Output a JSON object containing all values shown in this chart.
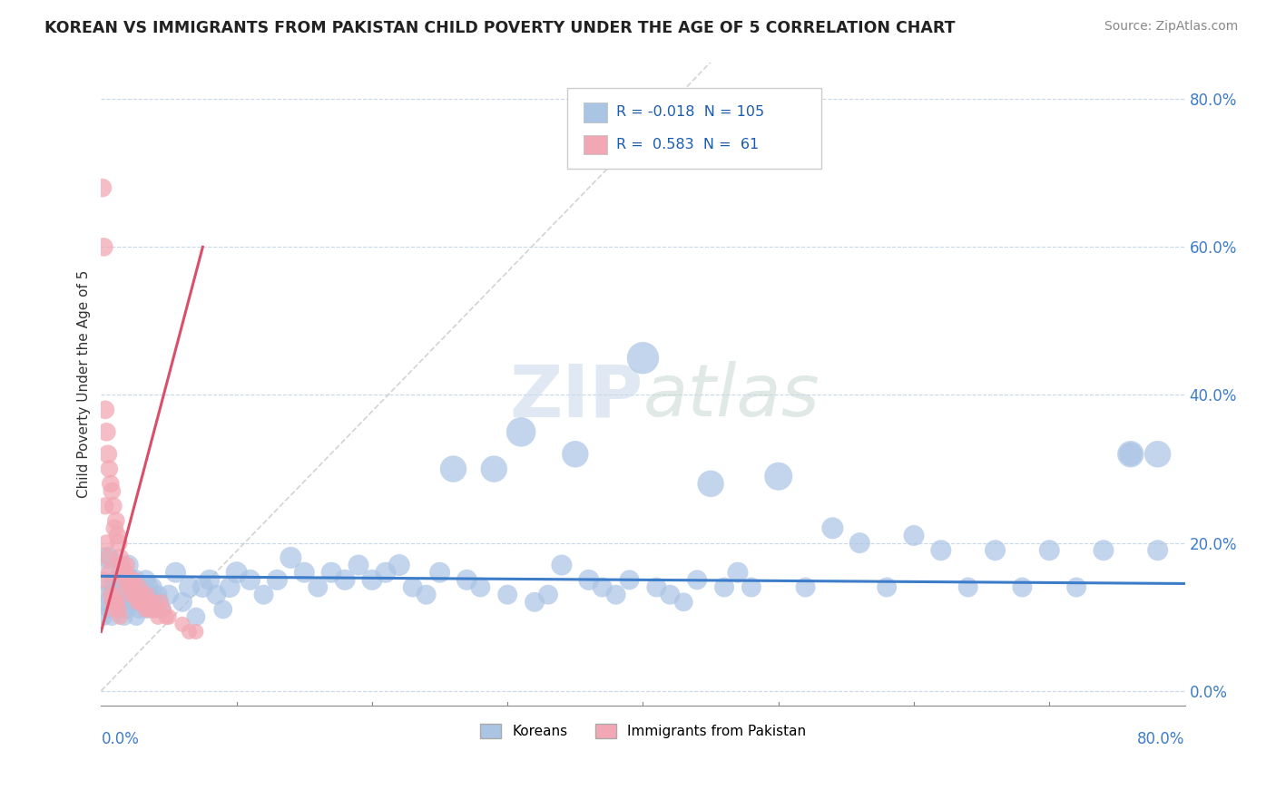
{
  "title": "KOREAN VS IMMIGRANTS FROM PAKISTAN CHILD POVERTY UNDER THE AGE OF 5 CORRELATION CHART",
  "source": "Source: ZipAtlas.com",
  "ylabel": "Child Poverty Under the Age of 5",
  "korean_R": "-0.018",
  "korean_N": "105",
  "pakistan_R": "0.583",
  "pakistan_N": "61",
  "watermark_zip": "ZIP",
  "watermark_atlas": "atlas",
  "legend_korean": "Koreans",
  "legend_pakistan": "Immigrants from Pakistan",
  "korean_color": "#aac4e4",
  "pakistan_color": "#f2a8b4",
  "korean_line_color": "#3d7cc9",
  "pakistan_line_color": "#d94f6a",
  "ref_line_color": "#c8c8c8",
  "grid_color": "#c8d8e8",
  "tick_color": "#3d7cc9",
  "title_color": "#222222",
  "source_color": "#888888",
  "ylabel_color": "#333333",
  "korean_scatter_x": [
    0.005,
    0.01,
    0.015,
    0.02,
    0.025,
    0.03,
    0.035,
    0.04,
    0.045,
    0.05,
    0.055,
    0.06,
    0.065,
    0.07,
    0.075,
    0.08,
    0.085,
    0.09,
    0.095,
    0.1,
    0.11,
    0.12,
    0.13,
    0.14,
    0.15,
    0.16,
    0.17,
    0.18,
    0.19,
    0.2,
    0.21,
    0.22,
    0.23,
    0.24,
    0.25,
    0.27,
    0.28,
    0.3,
    0.32,
    0.33,
    0.34,
    0.36,
    0.37,
    0.38,
    0.39,
    0.41,
    0.42,
    0.43,
    0.44,
    0.46,
    0.47,
    0.48,
    0.52,
    0.54,
    0.56,
    0.58,
    0.6,
    0.62,
    0.64,
    0.66,
    0.68,
    0.7,
    0.72,
    0.74,
    0.76,
    0.78,
    0.002,
    0.003,
    0.004,
    0.006,
    0.007,
    0.008,
    0.009,
    0.012,
    0.013,
    0.014,
    0.016,
    0.017,
    0.018,
    0.019,
    0.022,
    0.023,
    0.024,
    0.026,
    0.027,
    0.028,
    0.029,
    0.032,
    0.033,
    0.034,
    0.036,
    0.037,
    0.038,
    0.039,
    0.042,
    0.043,
    0.26,
    0.29,
    0.31,
    0.35,
    0.4,
    0.45,
    0.5,
    0.76,
    0.78
  ],
  "korean_scatter_y": [
    0.18,
    0.14,
    0.16,
    0.17,
    0.15,
    0.13,
    0.14,
    0.12,
    0.11,
    0.13,
    0.16,
    0.12,
    0.14,
    0.1,
    0.14,
    0.15,
    0.13,
    0.11,
    0.14,
    0.16,
    0.15,
    0.13,
    0.15,
    0.18,
    0.16,
    0.14,
    0.16,
    0.15,
    0.17,
    0.15,
    0.16,
    0.17,
    0.14,
    0.13,
    0.16,
    0.15,
    0.14,
    0.13,
    0.12,
    0.13,
    0.17,
    0.15,
    0.14,
    0.13,
    0.15,
    0.14,
    0.13,
    0.12,
    0.15,
    0.14,
    0.16,
    0.14,
    0.14,
    0.22,
    0.2,
    0.14,
    0.21,
    0.19,
    0.14,
    0.19,
    0.14,
    0.19,
    0.14,
    0.19,
    0.32,
    0.19,
    0.1,
    0.13,
    0.12,
    0.11,
    0.14,
    0.1,
    0.12,
    0.15,
    0.11,
    0.12,
    0.13,
    0.1,
    0.12,
    0.11,
    0.15,
    0.12,
    0.13,
    0.1,
    0.14,
    0.11,
    0.13,
    0.12,
    0.15,
    0.11,
    0.13,
    0.12,
    0.14,
    0.11,
    0.13,
    0.12,
    0.3,
    0.3,
    0.35,
    0.32,
    0.45,
    0.28,
    0.29,
    0.32,
    0.32
  ],
  "korean_scatter_sizes": [
    60,
    55,
    55,
    55,
    55,
    50,
    55,
    50,
    45,
    50,
    55,
    50,
    55,
    45,
    55,
    55,
    50,
    45,
    55,
    60,
    55,
    50,
    55,
    60,
    55,
    50,
    55,
    55,
    55,
    55,
    55,
    60,
    50,
    50,
    55,
    55,
    50,
    50,
    50,
    50,
    55,
    55,
    50,
    50,
    50,
    50,
    50,
    45,
    50,
    50,
    55,
    50,
    50,
    60,
    55,
    50,
    55,
    55,
    50,
    55,
    50,
    55,
    50,
    55,
    70,
    55,
    40,
    45,
    45,
    42,
    48,
    40,
    45,
    50,
    42,
    45,
    48,
    40,
    45,
    42,
    50,
    45,
    48,
    40,
    48,
    42,
    45,
    45,
    50,
    42,
    45,
    45,
    48,
    42,
    45,
    45,
    90,
    90,
    110,
    90,
    130,
    90,
    100,
    90,
    90
  ],
  "pakistan_scatter_x": [
    0.001,
    0.002,
    0.003,
    0.004,
    0.005,
    0.006,
    0.007,
    0.008,
    0.009,
    0.01,
    0.011,
    0.012,
    0.013,
    0.014,
    0.015,
    0.016,
    0.017,
    0.018,
    0.019,
    0.02,
    0.021,
    0.022,
    0.023,
    0.024,
    0.025,
    0.026,
    0.027,
    0.028,
    0.029,
    0.03,
    0.031,
    0.032,
    0.033,
    0.034,
    0.035,
    0.036,
    0.037,
    0.038,
    0.039,
    0.04,
    0.042,
    0.044,
    0.046,
    0.048,
    0.05,
    0.002,
    0.003,
    0.004,
    0.005,
    0.006,
    0.007,
    0.008,
    0.009,
    0.01,
    0.011,
    0.012,
    0.013,
    0.014,
    0.06,
    0.065,
    0.07
  ],
  "pakistan_scatter_y": [
    0.68,
    0.6,
    0.38,
    0.35,
    0.32,
    0.3,
    0.28,
    0.27,
    0.25,
    0.22,
    0.23,
    0.21,
    0.2,
    0.18,
    0.17,
    0.16,
    0.15,
    0.16,
    0.17,
    0.15,
    0.14,
    0.14,
    0.13,
    0.15,
    0.13,
    0.13,
    0.12,
    0.14,
    0.12,
    0.13,
    0.12,
    0.12,
    0.11,
    0.13,
    0.11,
    0.12,
    0.11,
    0.12,
    0.11,
    0.11,
    0.1,
    0.12,
    0.11,
    0.1,
    0.1,
    0.15,
    0.25,
    0.2,
    0.18,
    0.16,
    0.13,
    0.12,
    0.11,
    0.12,
    0.13,
    0.12,
    0.11,
    0.1,
    0.09,
    0.08,
    0.08
  ],
  "pakistan_scatter_sizes": [
    55,
    55,
    55,
    55,
    55,
    50,
    50,
    50,
    50,
    50,
    50,
    50,
    50,
    50,
    50,
    45,
    45,
    45,
    45,
    45,
    45,
    45,
    45,
    45,
    45,
    45,
    45,
    45,
    45,
    45,
    45,
    45,
    42,
    42,
    42,
    42,
    42,
    42,
    42,
    42,
    40,
    40,
    40,
    40,
    40,
    45,
    48,
    45,
    45,
    45,
    42,
    42,
    42,
    42,
    42,
    42,
    42,
    40,
    38,
    38,
    38
  ],
  "xlim": [
    0,
    0.8
  ],
  "ylim": [
    -0.02,
    0.85
  ],
  "ytick_vals": [
    0.0,
    0.2,
    0.4,
    0.6,
    0.8
  ],
  "xtick_vals": [
    0.0,
    0.1,
    0.2,
    0.3,
    0.4,
    0.5,
    0.6,
    0.7,
    0.8
  ],
  "figsize": [
    14.06,
    8.92
  ],
  "dpi": 100,
  "korean_trend_x": [
    0.0,
    0.8
  ],
  "korean_trend_y": [
    0.155,
    0.145
  ],
  "pakistan_trend_x0": 0.0,
  "pakistan_trend_y0": 0.08,
  "pakistan_trend_x1": 0.075,
  "pakistan_trend_y1": 0.6
}
